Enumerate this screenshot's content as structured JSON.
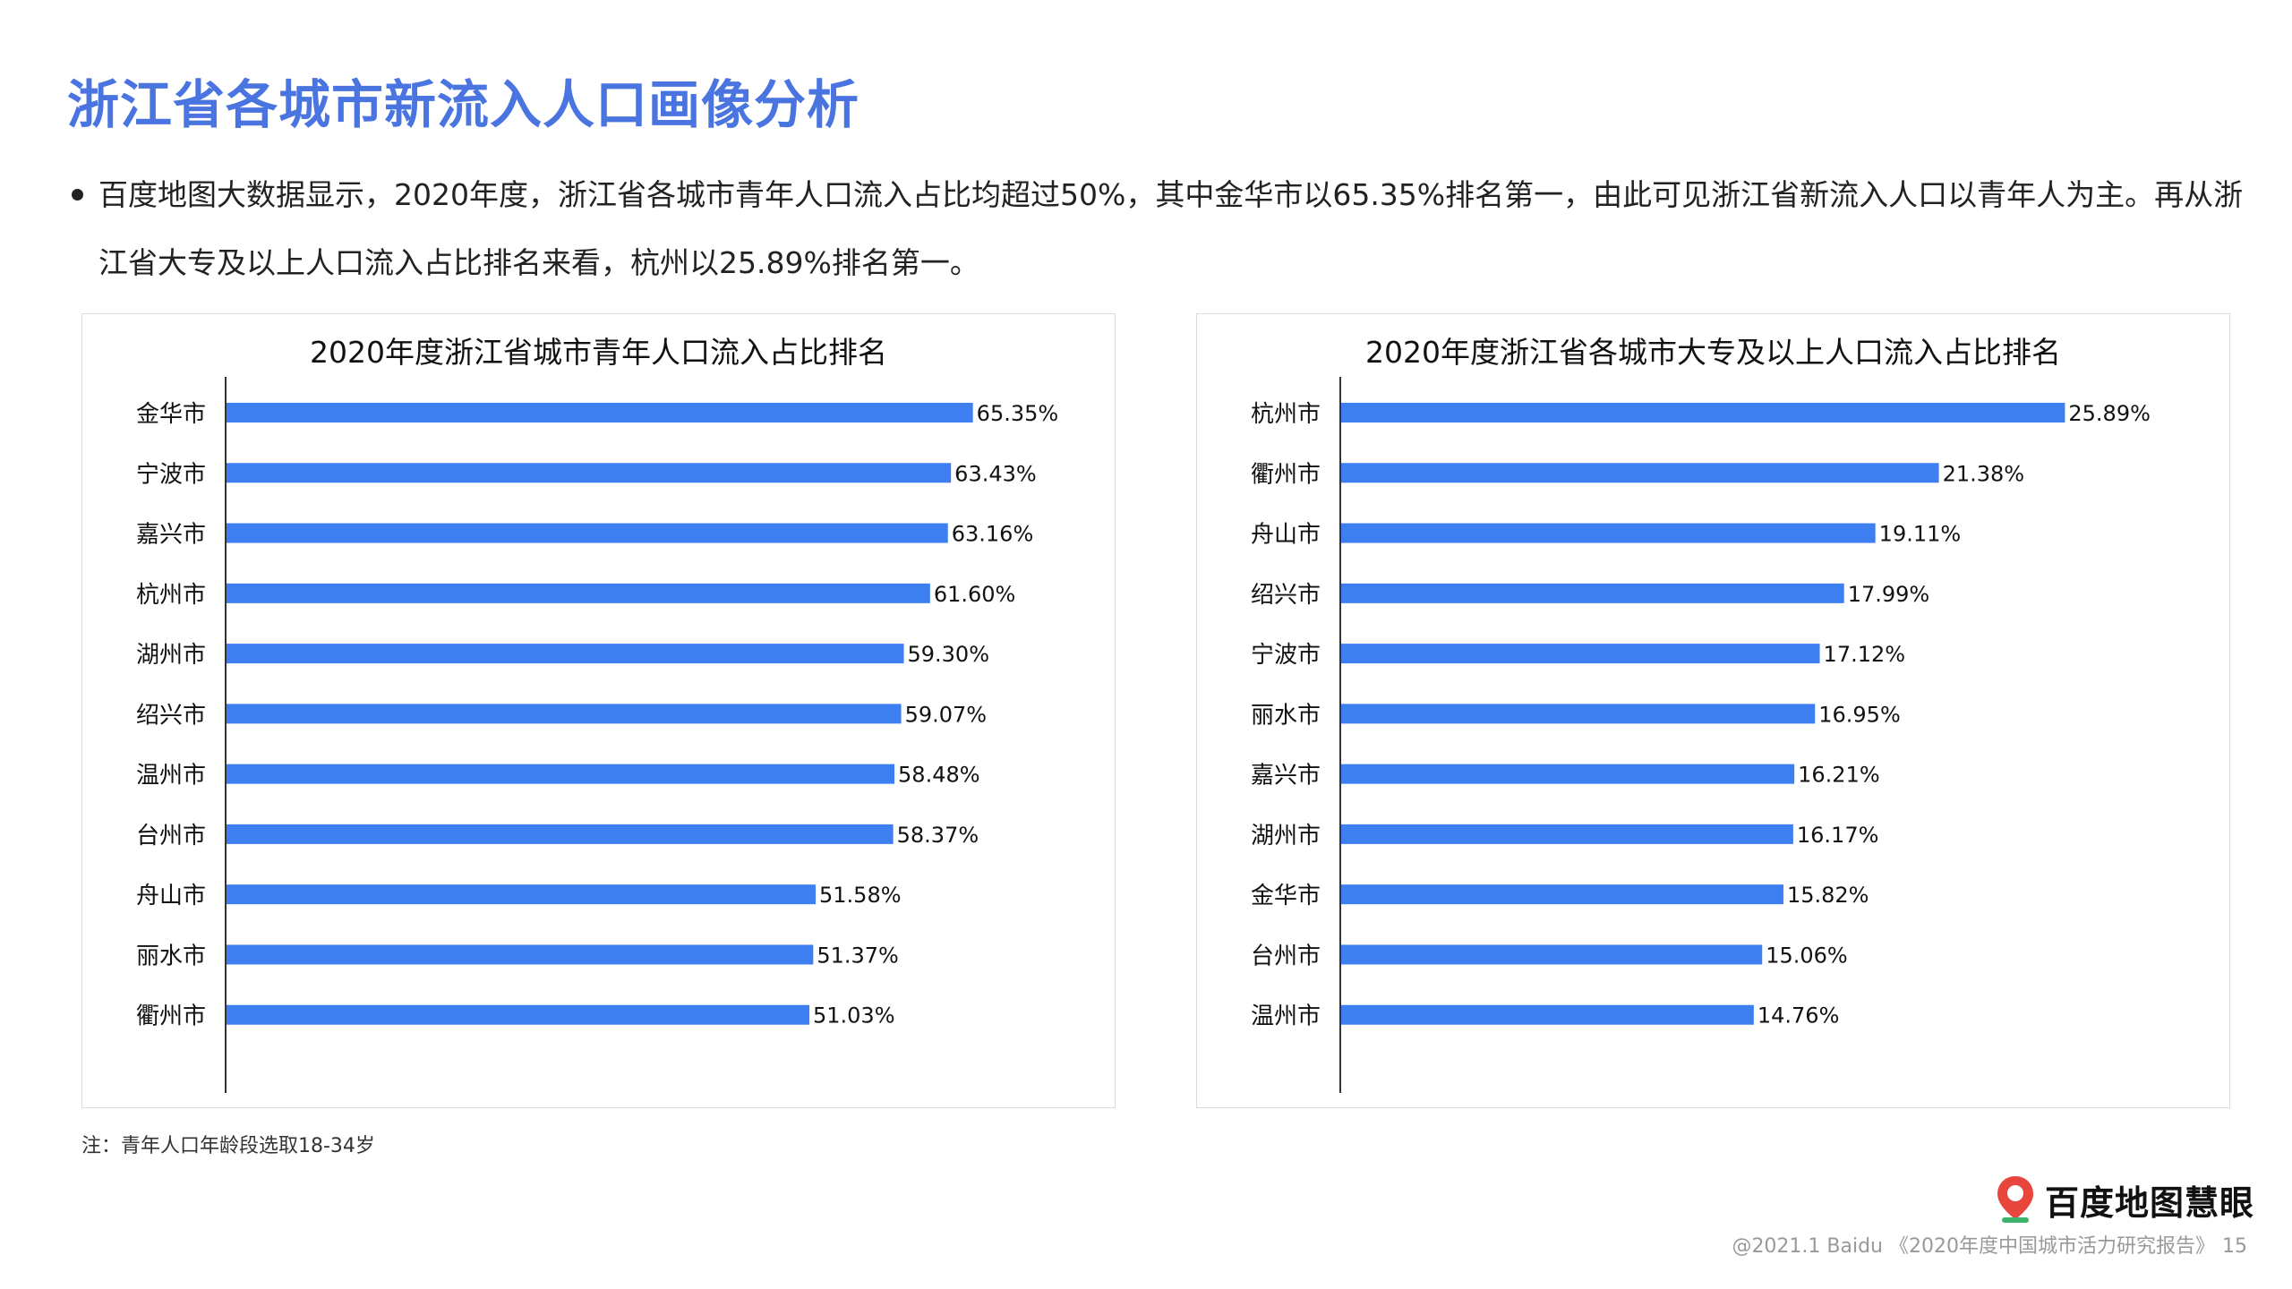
{
  "page": {
    "title": "浙江省各城市新流入人口画像分析",
    "summary": "百度地图大数据显示，2020年度，浙江省各城市青年人口流入占比均超过50%，其中金华市以65.35%排名第一，由此可见浙江省新流入人口以青年人为主。再从浙江省大专及以上人口流入占比排名来看，杭州以25.89%排名第一。",
    "note": "注：青年人口年龄段选取18-34岁",
    "logo_text": "百度地图慧眼",
    "footer_text": "@2021.1 Baidu 《2020年度中国城市活力研究报告》",
    "page_number": "15"
  },
  "colors": {
    "title": "#4a74e0",
    "bar": "#3d7ef0",
    "axis": "#333333"
  },
  "chart_data": [
    {
      "type": "bar",
      "orientation": "horizontal",
      "title": "2020年度浙江省城市青年人口流入占比排名",
      "categories": [
        "金华市",
        "宁波市",
        "嘉兴市",
        "杭州市",
        "湖州市",
        "绍兴市",
        "温州市",
        "台州市",
        "舟山市",
        "丽水市",
        "衢州市"
      ],
      "values": [
        65.35,
        63.43,
        63.16,
        61.6,
        59.3,
        59.07,
        58.48,
        58.37,
        51.58,
        51.37,
        51.03
      ],
      "labels": [
        "65.35%",
        "63.43%",
        "63.16%",
        "61.60%",
        "59.30%",
        "59.07%",
        "58.48%",
        "58.37%",
        "51.58%",
        "51.37%",
        "51.03%"
      ],
      "xlim": [
        0,
        70
      ],
      "grid": false
    },
    {
      "type": "bar",
      "orientation": "horizontal",
      "title": "2020年度浙江省各城市大专及以上人口流入占比排名",
      "categories": [
        "杭州市",
        "衢州市",
        "舟山市",
        "绍兴市",
        "宁波市",
        "丽水市",
        "嘉兴市",
        "湖州市",
        "金华市",
        "台州市",
        "温州市"
      ],
      "values": [
        25.89,
        21.38,
        19.11,
        17.99,
        17.12,
        16.95,
        16.21,
        16.17,
        15.82,
        15.06,
        14.76
      ],
      "labels": [
        "25.89%",
        "21.38%",
        "19.11%",
        "17.99%",
        "17.12%",
        "16.95%",
        "16.21%",
        "16.17%",
        "15.82%",
        "15.06%",
        "14.76%"
      ],
      "xlim": [
        0,
        28.6
      ],
      "grid": false
    }
  ]
}
